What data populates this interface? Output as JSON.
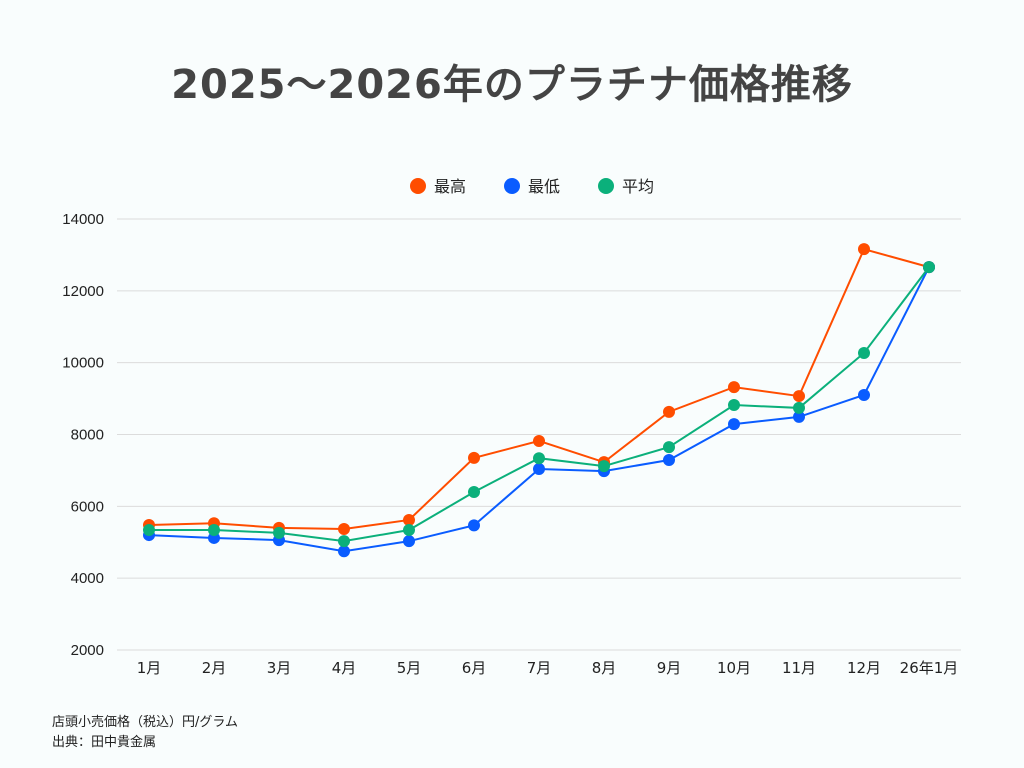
{
  "title": "2025〜2026年のプラチナ価格推移",
  "notes": {
    "unit": "店頭小売価格（税込）円/グラム",
    "source": "出典：田中貴金属"
  },
  "chart_data": {
    "type": "line",
    "title": "2025〜2026年のプラチナ価格推移",
    "categories": [
      "1月",
      "2月",
      "3月",
      "4月",
      "5月",
      "6月",
      "7月",
      "8月",
      "9月",
      "10月",
      "11月",
      "12月",
      "26年1月"
    ],
    "ylim": [
      2000,
      14000
    ],
    "yticks": [
      2000,
      4000,
      6000,
      8000,
      10000,
      12000,
      14000
    ],
    "grid": true,
    "legend_position": "top",
    "series": [
      {
        "name": "最高",
        "color": "#ff4d00",
        "values": [
          5480,
          5530,
          5400,
          5370,
          5620,
          7350,
          7820,
          7230,
          8630,
          9320,
          9070,
          13160,
          12660
        ]
      },
      {
        "name": "最低",
        "color": "#0a5cff",
        "values": [
          5200,
          5120,
          5060,
          4750,
          5030,
          5470,
          7040,
          6980,
          7290,
          8290,
          8490,
          9100,
          12660
        ]
      },
      {
        "name": "平均",
        "color": "#0bb07b",
        "values": [
          5340,
          5340,
          5260,
          5030,
          5340,
          6400,
          7340,
          7120,
          7650,
          8820,
          8740,
          10270,
          12660
        ]
      }
    ]
  }
}
